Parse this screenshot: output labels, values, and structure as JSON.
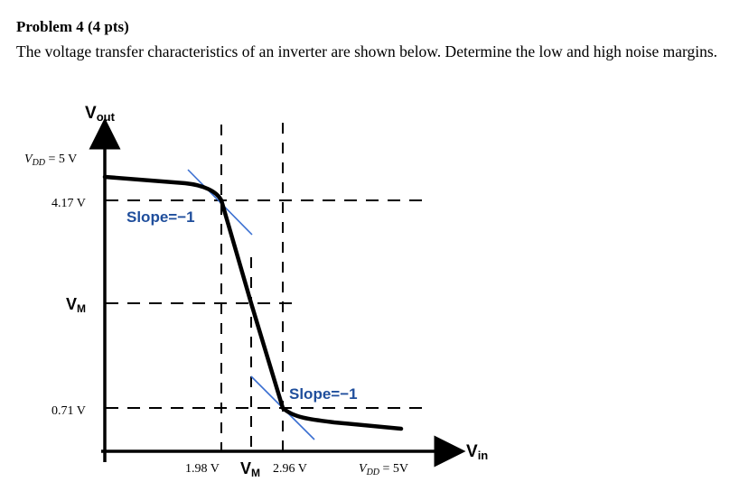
{
  "problem": {
    "title": "Problem 4 (4 pts)",
    "statement": "The voltage transfer characteristics of an inverter are shown below. Determine the low and high noise margins."
  },
  "figure": {
    "y_axis": {
      "main": "V",
      "sub": "out"
    },
    "x_axis": {
      "main": "V",
      "sub": "in"
    },
    "y_labels": {
      "vdd": {
        "main": "V",
        "sub": "DD",
        "rest": " = 5 V"
      },
      "voh": "4.17 V",
      "vm": {
        "main": "V",
        "sub": "M"
      },
      "vol": "0.71 V"
    },
    "x_labels": {
      "vil": "1.98 V",
      "vm": {
        "main": "V",
        "sub": "M"
      },
      "vih": "2.96 V",
      "vdd": {
        "main": "V",
        "sub": "DD",
        "rest": " = 5V"
      }
    },
    "annotations": {
      "slope_upper": "Slope=−1",
      "slope_lower": "Slope=−1"
    },
    "colors": {
      "curve": "#000000",
      "slope_text": "#1f4e9c",
      "tangent": "#3a6fd1"
    }
  }
}
